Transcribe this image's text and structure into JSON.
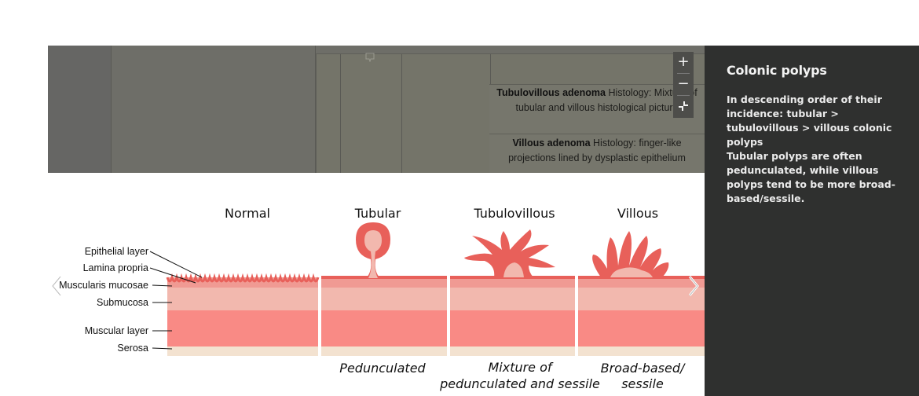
{
  "background_page": {
    "rows": [
      {
        "bold": "Tubulovillous adenoma",
        "text": " Histology: Mixture of tubular and villous histological picture"
      },
      {
        "bold": "Villous adenoma",
        "text": " Histology: finger-like projections lined by dysplastic epithelium"
      }
    ]
  },
  "zoom_controls": {
    "zoom_in": "+",
    "zoom_out": "−",
    "fit": "⤡"
  },
  "figure": {
    "columns": [
      "Normal",
      "Tubular",
      "Tubulovillous",
      "Villous"
    ],
    "layers": [
      "Epithelial layer",
      "Lamina propria",
      "Muscularis mucosae",
      "Submucosa",
      "Muscular layer",
      "Serosa"
    ],
    "captions": {
      "tubular": "Pedunculated",
      "tubulovillous_line1": "Mixture of",
      "tubulovillous_line2": "pedunculated and sessile",
      "villous_line1": "Broad-based/",
      "villous_line2": "sessile"
    }
  },
  "sidebar": {
    "title": "Colonic polyps",
    "paragraph1": "In descending order of their incidence: tubular > tubulovillous > villous colonic polyps",
    "paragraph2": "Tubular polyps are often pedunculated, while villous polyps tend to be more broad-based/sessile."
  },
  "colors": {
    "overlay_bg": "#6e6e68",
    "sidebar_bg": "#2f302f",
    "epithelium": "#e8605a",
    "lamina": "#f09a93",
    "submucosa": "#f2b8ae",
    "muscle": "#f98a85",
    "serosa": "#f3e2d0"
  }
}
